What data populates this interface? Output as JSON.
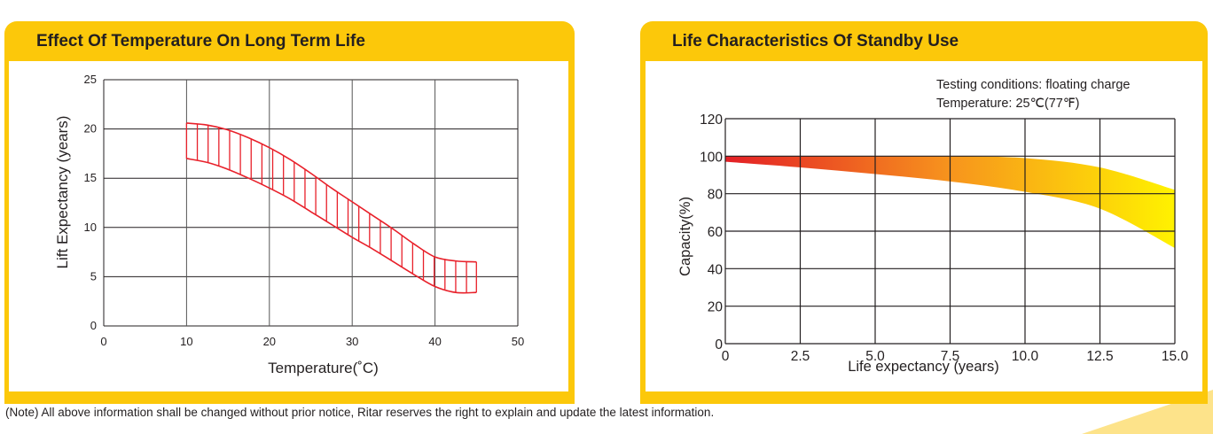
{
  "note": "(Note) All above information shall be changed without prior notice, Ritar reserves the right to explain and update the latest information.",
  "colors": {
    "panel": "#fcc80a",
    "band_red": "#e8202a",
    "gradient_start": "#e31f26",
    "gradient_mid": "#f7941d",
    "gradient_end": "#fff200"
  },
  "chart_data": [
    {
      "type": "area",
      "title": "Effect Of Temperature On Long Term Life",
      "xlabel": "Temperature(˚C)",
      "ylabel": "Lift  Expectancy  (years)",
      "xlim": [
        0,
        50
      ],
      "ylim": [
        0,
        25
      ],
      "xticks": [
        "0",
        "10",
        "20",
        "30",
        "40",
        "50"
      ],
      "yticks": [
        "0",
        "5",
        "10",
        "15",
        "20",
        "25"
      ],
      "grid": true,
      "style": "hatched band",
      "series": [
        {
          "name": "upper",
          "x": [
            10,
            12.5,
            15,
            17.5,
            20,
            22.5,
            25,
            27.5,
            30,
            32.5,
            35,
            37.5,
            40,
            42.5,
            45
          ],
          "values": [
            20.6,
            20.4,
            19.9,
            19.1,
            18.1,
            16.9,
            15.5,
            14.0,
            12.6,
            11.2,
            9.8,
            8.3,
            7.0,
            6.6,
            6.5
          ]
        },
        {
          "name": "lower",
          "x": [
            10,
            12.5,
            15,
            17.5,
            20,
            22.5,
            25,
            27.5,
            30,
            32.5,
            35,
            37.5,
            40,
            42.5,
            45
          ],
          "values": [
            17.0,
            16.6,
            15.9,
            15.0,
            14.0,
            12.9,
            11.6,
            10.3,
            9.0,
            7.8,
            6.5,
            5.2,
            4.0,
            3.4,
            3.4
          ]
        }
      ]
    },
    {
      "type": "area",
      "title": "Life Characteristics Of Standby Use",
      "annotations": [
        "Testing conditions: floating charge",
        "Temperature: 25℃(77℉)"
      ],
      "xlabel": "Life expectancy (years)",
      "ylabel": "Capacity(%)",
      "xlim": [
        0,
        15
      ],
      "ylim": [
        0,
        120
      ],
      "xticks": [
        "0",
        "2.5",
        "5.0",
        "7.5",
        "10.0",
        "12.5",
        "15.0"
      ],
      "yticks": [
        "0",
        "20",
        "40",
        "60",
        "80",
        "100",
        "120"
      ],
      "grid": true,
      "style": "gradient band red to yellow",
      "series": [
        {
          "name": "upper",
          "x": [
            0,
            2.5,
            5,
            7.5,
            10,
            12.5,
            15
          ],
          "values": [
            100,
            100,
            100,
            100,
            99,
            94,
            82
          ]
        },
        {
          "name": "lower",
          "x": [
            0,
            2.5,
            5,
            7.5,
            10,
            12.5,
            15
          ],
          "values": [
            97,
            94,
            90.5,
            86.5,
            81,
            72,
            51
          ]
        }
      ]
    }
  ]
}
